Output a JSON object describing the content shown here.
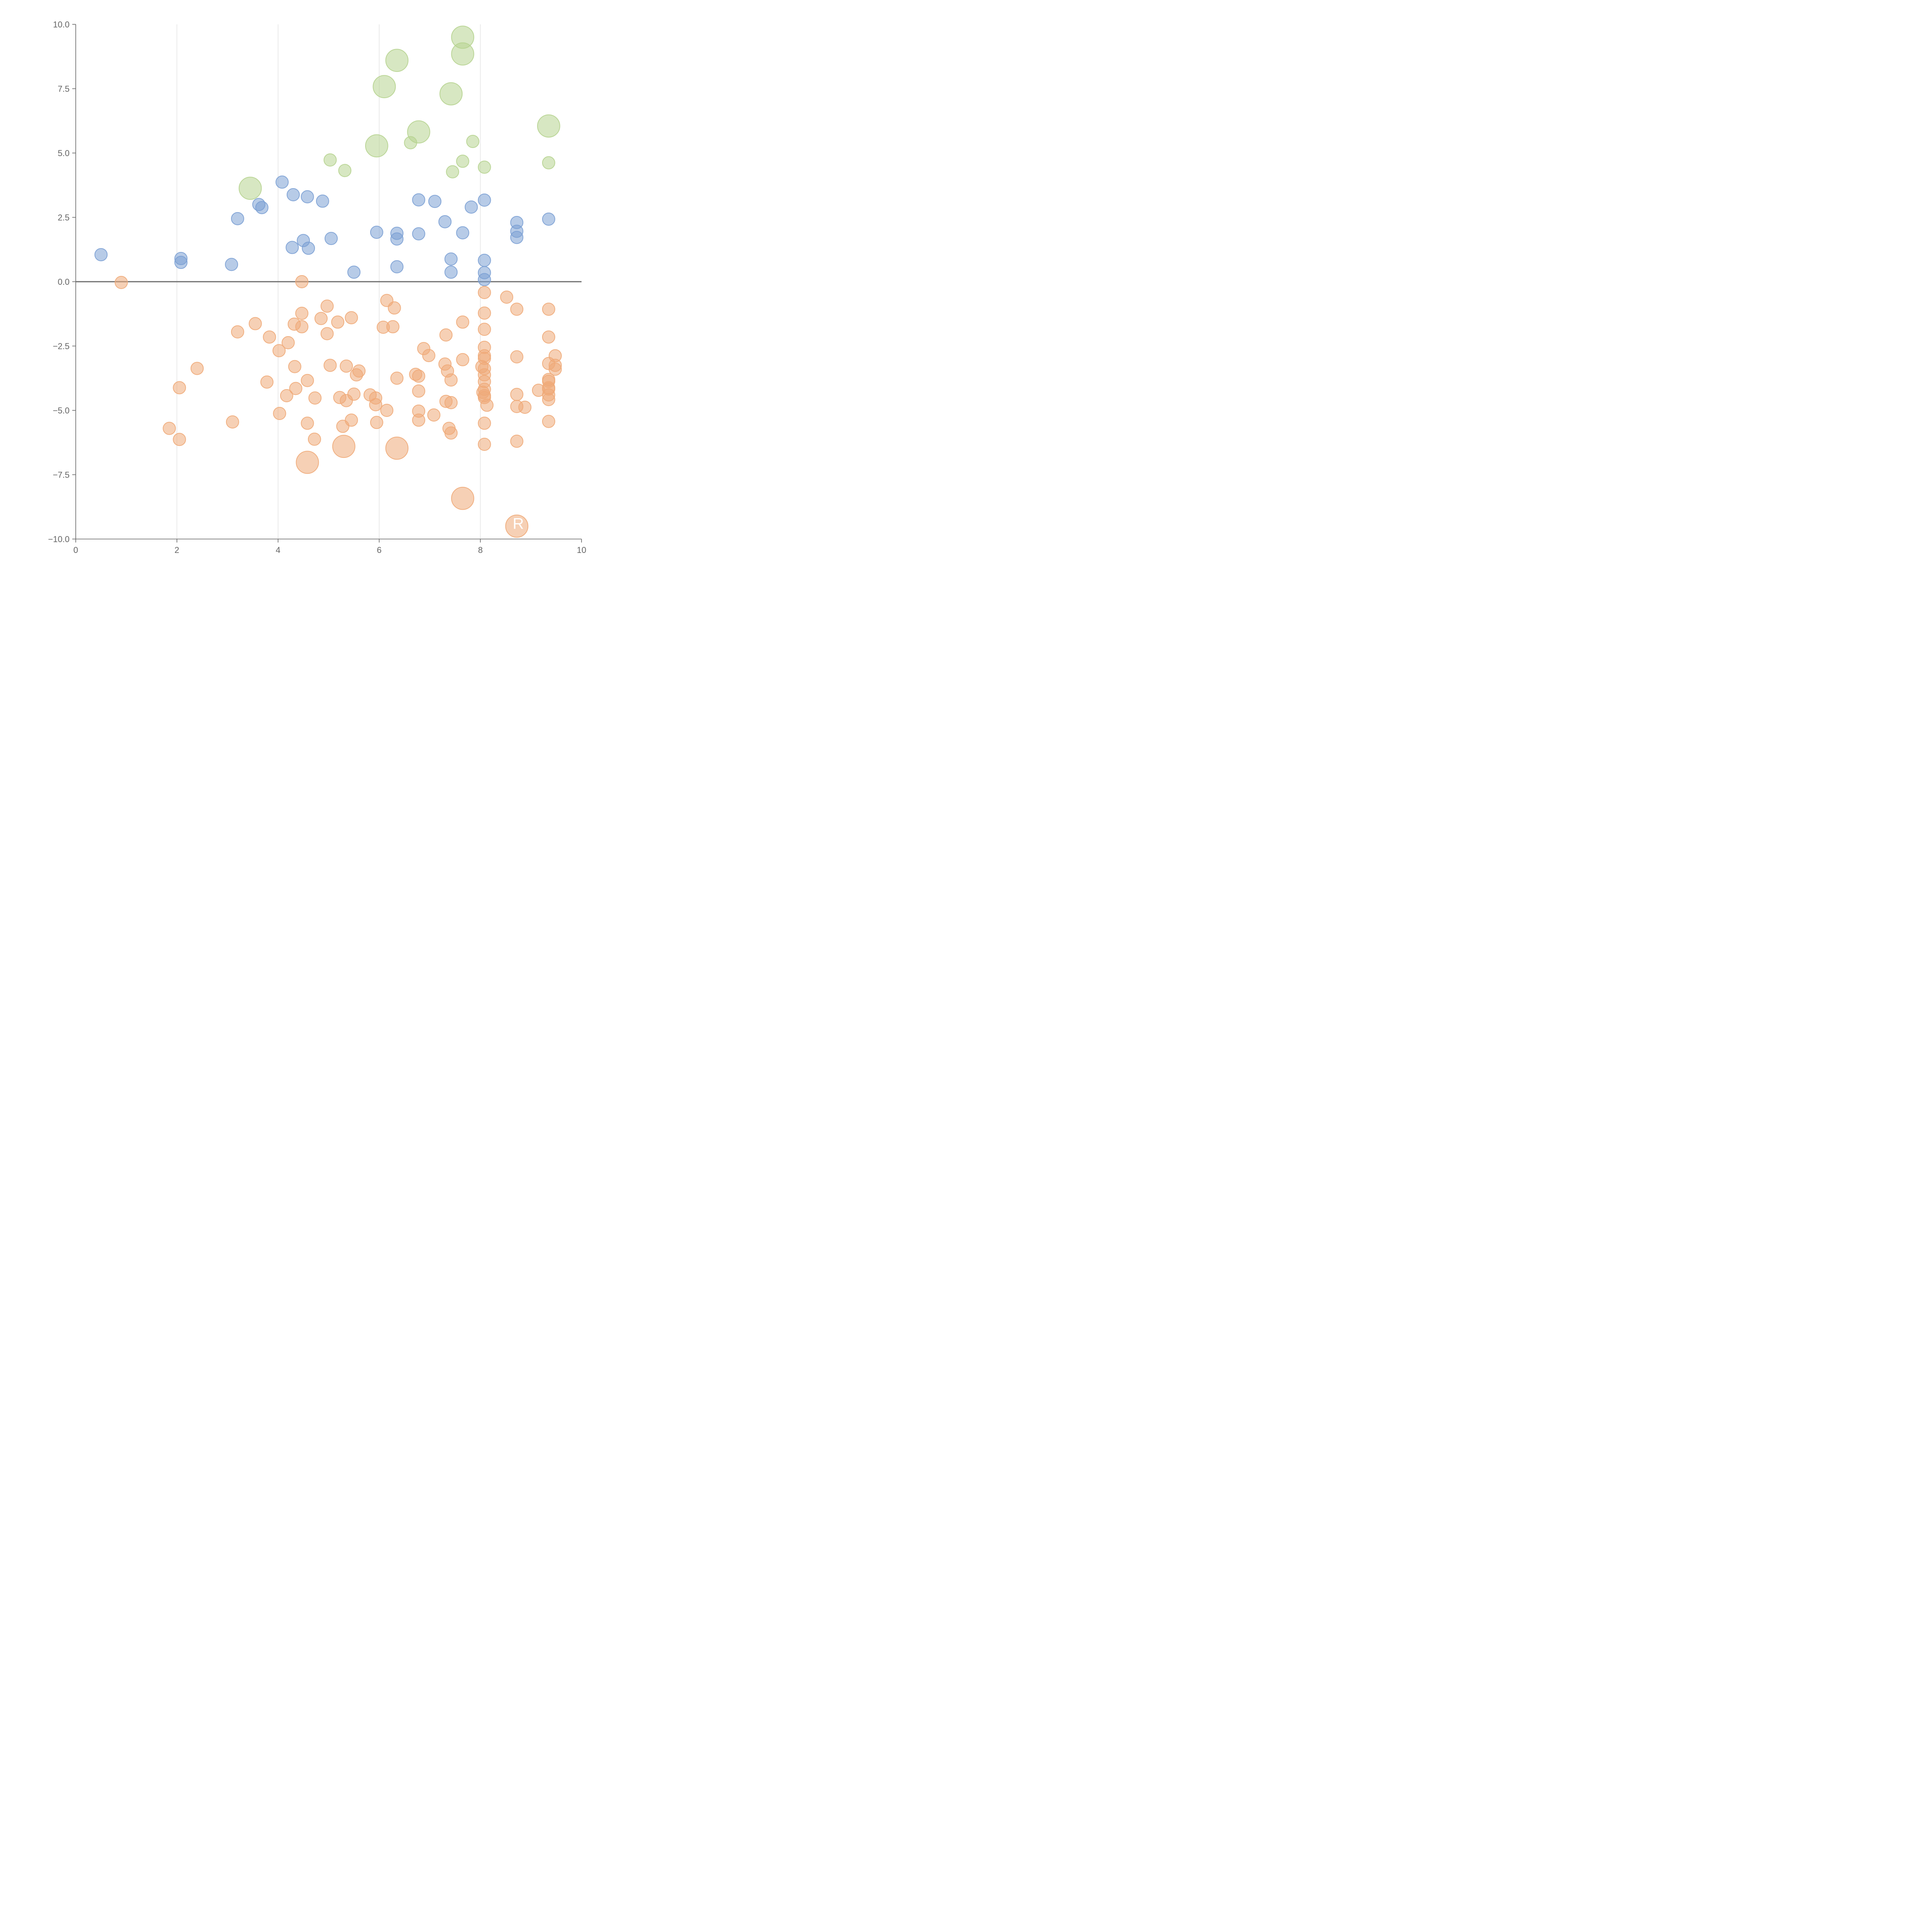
{
  "chart_data": {
    "type": "scatter",
    "title": "",
    "xlabel": "",
    "ylabel": "",
    "xlim": [
      0,
      10
    ],
    "ylim": [
      -10,
      10
    ],
    "grid": "vertical",
    "x_ticks": [
      0,
      2,
      4,
      6,
      8,
      10
    ],
    "x_tick_labels": [
      "0",
      "2",
      "4",
      "6",
      "8",
      "10"
    ],
    "y_ticks": [
      10,
      7.5,
      5,
      2.5,
      0,
      -2.5,
      -5,
      -7.5,
      -10
    ],
    "y_tick_labels": [
      "10.0",
      "7.5",
      "5.0",
      "2.5",
      "0.0",
      "−2.5",
      "−5.0",
      "−7.5",
      "−10.0"
    ],
    "zero_line": 0,
    "annotations": [
      {
        "text": "R",
        "x": 8.75,
        "y": -9.6
      }
    ],
    "series": [
      {
        "name": "blue",
        "color": "#7ba0d4",
        "points": [
          {
            "x": 0.5,
            "y": 1.05,
            "size": 1
          },
          {
            "x": 2.08,
            "y": 0.9,
            "size": 1
          },
          {
            "x": 2.08,
            "y": 0.75,
            "size": 1
          },
          {
            "x": 3.08,
            "y": 0.67,
            "size": 1
          },
          {
            "x": 3.2,
            "y": 2.45,
            "size": 1
          },
          {
            "x": 3.62,
            "y": 3.0,
            "size": 1
          },
          {
            "x": 3.68,
            "y": 2.88,
            "size": 1
          },
          {
            "x": 4.08,
            "y": 3.87,
            "size": 1
          },
          {
            "x": 4.3,
            "y": 3.38,
            "size": 1
          },
          {
            "x": 4.58,
            "y": 3.3,
            "size": 1
          },
          {
            "x": 4.88,
            "y": 3.13,
            "size": 1
          },
          {
            "x": 4.28,
            "y": 1.33,
            "size": 1
          },
          {
            "x": 4.5,
            "y": 1.6,
            "size": 1
          },
          {
            "x": 4.6,
            "y": 1.3,
            "size": 1
          },
          {
            "x": 5.05,
            "y": 1.68,
            "size": 1
          },
          {
            "x": 5.5,
            "y": 0.37,
            "size": 1
          },
          {
            "x": 5.95,
            "y": 1.92,
            "size": 1
          },
          {
            "x": 6.35,
            "y": 1.88,
            "size": 1
          },
          {
            "x": 6.35,
            "y": 1.66,
            "size": 1
          },
          {
            "x": 6.35,
            "y": 0.58,
            "size": 1
          },
          {
            "x": 6.78,
            "y": 3.18,
            "size": 1
          },
          {
            "x": 6.78,
            "y": 1.86,
            "size": 1
          },
          {
            "x": 7.1,
            "y": 3.12,
            "size": 1
          },
          {
            "x": 7.3,
            "y": 2.33,
            "size": 1
          },
          {
            "x": 7.42,
            "y": 0.88,
            "size": 1
          },
          {
            "x": 7.42,
            "y": 0.37,
            "size": 1
          },
          {
            "x": 7.65,
            "y": 1.9,
            "size": 1
          },
          {
            "x": 7.82,
            "y": 2.9,
            "size": 1
          },
          {
            "x": 8.08,
            "y": 3.17,
            "size": 1
          },
          {
            "x": 8.08,
            "y": 0.83,
            "size": 1
          },
          {
            "x": 8.08,
            "y": 0.35,
            "size": 1
          },
          {
            "x": 8.08,
            "y": 0.08,
            "size": 1
          },
          {
            "x": 8.72,
            "y": 2.3,
            "size": 1
          },
          {
            "x": 8.72,
            "y": 1.96,
            "size": 1
          },
          {
            "x": 8.72,
            "y": 1.72,
            "size": 1
          },
          {
            "x": 9.35,
            "y": 2.43,
            "size": 1
          }
        ]
      },
      {
        "name": "green",
        "color": "#b6d38f",
        "points": [
          {
            "x": 3.45,
            "y": 3.63,
            "size": 2.6
          },
          {
            "x": 5.03,
            "y": 4.73,
            "size": 1
          },
          {
            "x": 5.32,
            "y": 4.32,
            "size": 1
          },
          {
            "x": 5.95,
            "y": 5.28,
            "size": 2.6
          },
          {
            "x": 6.1,
            "y": 7.58,
            "size": 2.6
          },
          {
            "x": 6.35,
            "y": 8.6,
            "size": 2.6
          },
          {
            "x": 6.62,
            "y": 5.4,
            "size": 1
          },
          {
            "x": 6.78,
            "y": 5.82,
            "size": 2.6
          },
          {
            "x": 7.42,
            "y": 7.3,
            "size": 2.6
          },
          {
            "x": 7.45,
            "y": 4.27,
            "size": 1
          },
          {
            "x": 7.65,
            "y": 9.5,
            "size": 2.6
          },
          {
            "x": 7.65,
            "y": 8.85,
            "size": 2.6
          },
          {
            "x": 7.65,
            "y": 4.68,
            "size": 1
          },
          {
            "x": 7.85,
            "y": 5.45,
            "size": 1
          },
          {
            "x": 8.08,
            "y": 4.45,
            "size": 1
          },
          {
            "x": 9.35,
            "y": 6.05,
            "size": 2.6
          },
          {
            "x": 9.35,
            "y": 4.62,
            "size": 1
          }
        ]
      },
      {
        "name": "orange",
        "color": "#efaa78",
        "points": [
          {
            "x": 0.9,
            "y": -0.03,
            "size": 1
          },
          {
            "x": 1.85,
            "y": -5.7,
            "size": 1
          },
          {
            "x": 2.05,
            "y": -4.12,
            "size": 1
          },
          {
            "x": 2.05,
            "y": -6.13,
            "size": 1
          },
          {
            "x": 2.4,
            "y": -3.37,
            "size": 1
          },
          {
            "x": 3.1,
            "y": -5.45,
            "size": 1
          },
          {
            "x": 3.2,
            "y": -1.95,
            "size": 1
          },
          {
            "x": 3.55,
            "y": -1.63,
            "size": 1
          },
          {
            "x": 3.78,
            "y": -3.9,
            "size": 1
          },
          {
            "x": 3.83,
            "y": -2.15,
            "size": 1
          },
          {
            "x": 4.02,
            "y": -2.68,
            "size": 1
          },
          {
            "x": 4.03,
            "y": -5.12,
            "size": 1
          },
          {
            "x": 4.17,
            "y": -4.43,
            "size": 1
          },
          {
            "x": 4.2,
            "y": -2.37,
            "size": 1
          },
          {
            "x": 4.32,
            "y": -1.65,
            "size": 1
          },
          {
            "x": 4.33,
            "y": -3.3,
            "size": 1
          },
          {
            "x": 4.35,
            "y": -4.15,
            "size": 1
          },
          {
            "x": 4.47,
            "y": -1.75,
            "size": 1
          },
          {
            "x": 4.47,
            "y": -1.23,
            "size": 1
          },
          {
            "x": 4.47,
            "y": -0.0,
            "size": 1
          },
          {
            "x": 4.58,
            "y": -3.84,
            "size": 1
          },
          {
            "x": 4.58,
            "y": -5.5,
            "size": 1
          },
          {
            "x": 4.58,
            "y": -7.02,
            "size": 2.6
          },
          {
            "x": 4.72,
            "y": -6.12,
            "size": 1
          },
          {
            "x": 4.73,
            "y": -4.52,
            "size": 1
          },
          {
            "x": 4.85,
            "y": -1.43,
            "size": 1
          },
          {
            "x": 4.97,
            "y": -0.95,
            "size": 1
          },
          {
            "x": 4.97,
            "y": -2.02,
            "size": 1
          },
          {
            "x": 5.03,
            "y": -3.25,
            "size": 1
          },
          {
            "x": 5.18,
            "y": -1.57,
            "size": 1
          },
          {
            "x": 5.22,
            "y": -4.5,
            "size": 1
          },
          {
            "x": 5.28,
            "y": -5.62,
            "size": 1
          },
          {
            "x": 5.3,
            "y": -6.4,
            "size": 2.6
          },
          {
            "x": 5.35,
            "y": -3.28,
            "size": 1
          },
          {
            "x": 5.35,
            "y": -4.62,
            "size": 1
          },
          {
            "x": 5.45,
            "y": -1.4,
            "size": 1
          },
          {
            "x": 5.45,
            "y": -5.38,
            "size": 1
          },
          {
            "x": 5.5,
            "y": -4.37,
            "size": 1
          },
          {
            "x": 5.55,
            "y": -3.62,
            "size": 1
          },
          {
            "x": 5.6,
            "y": -3.47,
            "size": 1
          },
          {
            "x": 5.82,
            "y": -4.4,
            "size": 1
          },
          {
            "x": 5.93,
            "y": -4.52,
            "size": 1
          },
          {
            "x": 5.93,
            "y": -4.78,
            "size": 1
          },
          {
            "x": 5.95,
            "y": -5.47,
            "size": 1
          },
          {
            "x": 6.08,
            "y": -1.77,
            "size": 1
          },
          {
            "x": 6.15,
            "y": -0.73,
            "size": 1
          },
          {
            "x": 6.15,
            "y": -5.0,
            "size": 1
          },
          {
            "x": 6.27,
            "y": -1.75,
            "size": 1
          },
          {
            "x": 6.3,
            "y": -1.02,
            "size": 1
          },
          {
            "x": 6.35,
            "y": -3.75,
            "size": 1
          },
          {
            "x": 6.35,
            "y": -6.47,
            "size": 2.6
          },
          {
            "x": 6.72,
            "y": -3.6,
            "size": 1
          },
          {
            "x": 6.78,
            "y": -3.67,
            "size": 1
          },
          {
            "x": 6.78,
            "y": -4.25,
            "size": 1
          },
          {
            "x": 6.78,
            "y": -5.03,
            "size": 1
          },
          {
            "x": 6.78,
            "y": -5.38,
            "size": 1
          },
          {
            "x": 6.88,
            "y": -2.6,
            "size": 1
          },
          {
            "x": 6.98,
            "y": -2.87,
            "size": 1
          },
          {
            "x": 7.08,
            "y": -5.18,
            "size": 1
          },
          {
            "x": 7.3,
            "y": -3.2,
            "size": 1
          },
          {
            "x": 7.32,
            "y": -4.65,
            "size": 1
          },
          {
            "x": 7.32,
            "y": -2.07,
            "size": 1
          },
          {
            "x": 7.35,
            "y": -3.47,
            "size": 1
          },
          {
            "x": 7.38,
            "y": -5.7,
            "size": 1
          },
          {
            "x": 7.42,
            "y": -3.82,
            "size": 1
          },
          {
            "x": 7.42,
            "y": -4.7,
            "size": 1
          },
          {
            "x": 7.42,
            "y": -5.88,
            "size": 1
          },
          {
            "x": 7.65,
            "y": -1.57,
            "size": 1
          },
          {
            "x": 7.65,
            "y": -3.03,
            "size": 1
          },
          {
            "x": 7.65,
            "y": -8.42,
            "size": 2.6
          },
          {
            "x": 8.03,
            "y": -3.3,
            "size": 1
          },
          {
            "x": 8.05,
            "y": -4.3,
            "size": 1
          },
          {
            "x": 8.08,
            "y": -0.42,
            "size": 1
          },
          {
            "x": 8.08,
            "y": -1.22,
            "size": 1
          },
          {
            "x": 8.08,
            "y": -1.85,
            "size": 1
          },
          {
            "x": 8.08,
            "y": -2.55,
            "size": 1
          },
          {
            "x": 8.08,
            "y": -2.88,
            "size": 1
          },
          {
            "x": 8.08,
            "y": -2.98,
            "size": 1
          },
          {
            "x": 8.08,
            "y": -3.38,
            "size": 1
          },
          {
            "x": 8.08,
            "y": -3.62,
            "size": 1
          },
          {
            "x": 8.08,
            "y": -3.88,
            "size": 1
          },
          {
            "x": 8.08,
            "y": -4.18,
            "size": 1
          },
          {
            "x": 8.08,
            "y": -4.43,
            "size": 1
          },
          {
            "x": 8.08,
            "y": -4.5,
            "size": 1
          },
          {
            "x": 8.08,
            "y": -5.5,
            "size": 1
          },
          {
            "x": 8.08,
            "y": -6.32,
            "size": 1
          },
          {
            "x": 8.13,
            "y": -4.8,
            "size": 1
          },
          {
            "x": 8.52,
            "y": -0.6,
            "size": 1
          },
          {
            "x": 8.72,
            "y": -1.07,
            "size": 1
          },
          {
            "x": 8.72,
            "y": -2.92,
            "size": 1
          },
          {
            "x": 8.72,
            "y": -4.38,
            "size": 1
          },
          {
            "x": 8.72,
            "y": -4.85,
            "size": 1
          },
          {
            "x": 8.72,
            "y": -6.2,
            "size": 1
          },
          {
            "x": 8.72,
            "y": -9.5,
            "size": 2.6
          },
          {
            "x": 8.88,
            "y": -4.88,
            "size": 1
          },
          {
            "x": 9.15,
            "y": -4.22,
            "size": 1
          },
          {
            "x": 9.35,
            "y": -1.07,
            "size": 1
          },
          {
            "x": 9.35,
            "y": -2.15,
            "size": 1
          },
          {
            "x": 9.35,
            "y": -3.18,
            "size": 1
          },
          {
            "x": 9.35,
            "y": -3.8,
            "size": 1
          },
          {
            "x": 9.35,
            "y": -3.87,
            "size": 1
          },
          {
            "x": 9.35,
            "y": -4.12,
            "size": 1
          },
          {
            "x": 9.35,
            "y": -4.17,
            "size": 1
          },
          {
            "x": 9.35,
            "y": -4.4,
            "size": 1
          },
          {
            "x": 9.35,
            "y": -4.58,
            "size": 1
          },
          {
            "x": 9.35,
            "y": -5.43,
            "size": 1
          },
          {
            "x": 9.48,
            "y": -2.88,
            "size": 1
          },
          {
            "x": 9.48,
            "y": -3.25,
            "size": 1
          },
          {
            "x": 9.48,
            "y": -3.4,
            "size": 1
          }
        ]
      }
    ]
  }
}
